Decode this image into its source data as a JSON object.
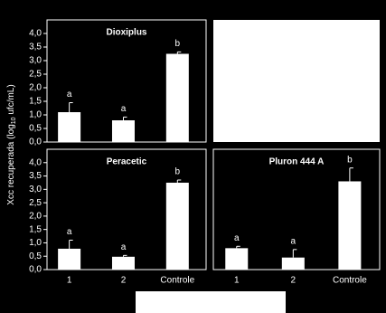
{
  "y_axis_label": [
    "Xcc recuperada (log",
    "10",
    " ufc/mL)"
  ],
  "chart_data": [
    {
      "type": "bar",
      "title": "Dioxiplus",
      "categories": [
        "1",
        "2",
        "Controle"
      ],
      "show_categories": false,
      "show_yticks": true,
      "values": [
        1.1,
        0.8,
        3.25
      ],
      "errors": [
        0.35,
        0.12,
        0.07
      ],
      "annotations": [
        "a",
        "a",
        "b"
      ],
      "color": "#ffffff",
      "ylim": [
        0,
        4.5
      ],
      "yticks": [
        {
          "value": 0,
          "label": "0,0"
        },
        {
          "value": 0.5,
          "label": "0,5"
        },
        {
          "value": 1,
          "label": "1,0"
        },
        {
          "value": 1.5,
          "label": "1,5"
        },
        {
          "value": 2,
          "label": "2,0"
        },
        {
          "value": 2.5,
          "label": "2,5"
        },
        {
          "value": 3,
          "label": "3,0"
        },
        {
          "value": 3.5,
          "label": "3,5"
        },
        {
          "value": 4,
          "label": "4,0"
        }
      ]
    },
    {
      "type": "bar",
      "title": "Peracetic",
      "categories": [
        "1",
        "2",
        "Controle"
      ],
      "show_categories": true,
      "show_yticks": true,
      "values": [
        0.78,
        0.48,
        3.25
      ],
      "errors": [
        0.32,
        0.05,
        0.1
      ],
      "annotations": [
        "a",
        "a",
        "b"
      ],
      "color": "#ffffff",
      "ylim": [
        0,
        4.5
      ],
      "yticks": [
        {
          "value": 0,
          "label": "0,0"
        },
        {
          "value": 0.5,
          "label": "0,5"
        },
        {
          "value": 1,
          "label": "1,0"
        },
        {
          "value": 1.5,
          "label": "1,5"
        },
        {
          "value": 2,
          "label": "2,0"
        },
        {
          "value": 2.5,
          "label": "2,5"
        },
        {
          "value": 3,
          "label": "3,0"
        },
        {
          "value": 3.5,
          "label": "3,5"
        },
        {
          "value": 4,
          "label": "4,0"
        }
      ]
    },
    {
      "type": "bar",
      "title": "Pluron 444 A",
      "categories": [
        "1",
        "2",
        "Controle"
      ],
      "show_categories": true,
      "show_yticks": false,
      "values": [
        0.8,
        0.45,
        3.3
      ],
      "errors": [
        0.07,
        0.3,
        0.5
      ],
      "annotations": [
        "a",
        "a",
        "b"
      ],
      "color": "#ffffff",
      "ylim": [
        0,
        4.5
      ]
    }
  ]
}
